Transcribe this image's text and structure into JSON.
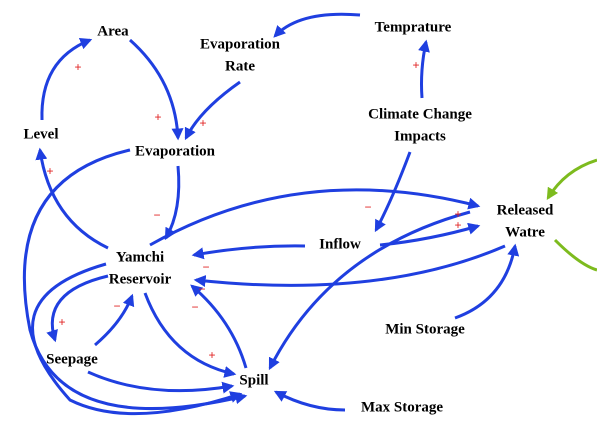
{
  "nodes": [
    {
      "label": [
        "Area"
      ]
    },
    {
      "label": [
        "Evaporation",
        "Rate"
      ]
    },
    {
      "label": [
        "Temprature"
      ]
    },
    {
      "label": [
        "Level"
      ]
    },
    {
      "label": [
        "Evaporation"
      ]
    },
    {
      "label": [
        "Climate Change",
        "Impacts"
      ]
    },
    {
      "label": [
        "Released",
        "Watre"
      ]
    },
    {
      "label": [
        "Inflow"
      ]
    },
    {
      "label": [
        "Yamchi",
        "Reservoir"
      ]
    },
    {
      "label": [
        "Min Storage"
      ]
    },
    {
      "label": [
        "Seepage"
      ]
    },
    {
      "label": [
        "Spill"
      ]
    },
    {
      "label": [
        "Max Storage"
      ]
    }
  ],
  "polarities": [
    "+",
    "+",
    "+",
    "+",
    "+",
    "−",
    "−",
    "+",
    "+",
    "−",
    "−",
    "−",
    "−",
    "+",
    "+"
  ]
}
